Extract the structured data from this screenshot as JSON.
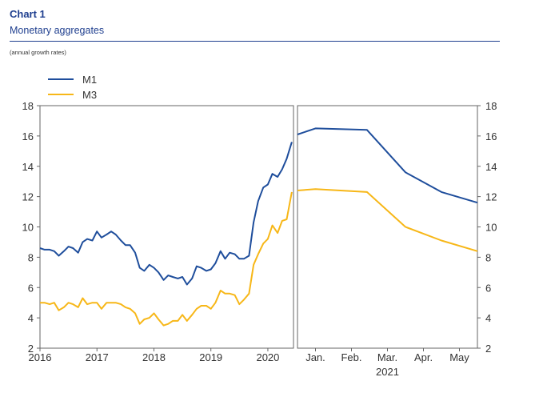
{
  "header": {
    "chart_number": "Chart 1",
    "title": "Monetary aggregates",
    "subtitle": "(annual growth rates)"
  },
  "colors": {
    "m1": "#1f4e9c",
    "m3": "#f7b718",
    "frame": "#666666",
    "text": "#333333"
  },
  "chart_data": [
    {
      "type": "line",
      "title": "",
      "x_labels": [
        "2016",
        "2017",
        "2018",
        "2019",
        "2020"
      ],
      "xlim": [
        2016.0,
        2020.45
      ],
      "ylim": [
        2,
        18
      ],
      "y_ticks": [
        2,
        4,
        6,
        8,
        10,
        12,
        14,
        16,
        18
      ],
      "legend": "top-left",
      "series": [
        {
          "name": "M1",
          "x": [
            2016.0,
            2016.08,
            2016.17,
            2016.25,
            2016.33,
            2016.42,
            2016.5,
            2016.58,
            2016.67,
            2016.75,
            2016.83,
            2016.92,
            2017.0,
            2017.08,
            2017.17,
            2017.25,
            2017.33,
            2017.42,
            2017.5,
            2017.58,
            2017.67,
            2017.75,
            2017.83,
            2017.92,
            2018.0,
            2018.08,
            2018.17,
            2018.25,
            2018.33,
            2018.42,
            2018.5,
            2018.58,
            2018.67,
            2018.75,
            2018.83,
            2018.92,
            2019.0,
            2019.08,
            2019.17,
            2019.25,
            2019.33,
            2019.42,
            2019.5,
            2019.58,
            2019.67,
            2019.75,
            2019.83,
            2019.92,
            2020.0,
            2020.08,
            2020.17,
            2020.25,
            2020.33,
            2020.42
          ],
          "values": [
            8.6,
            8.5,
            8.5,
            8.4,
            8.1,
            8.4,
            8.7,
            8.6,
            8.3,
            9.0,
            9.2,
            9.1,
            9.7,
            9.3,
            9.5,
            9.7,
            9.5,
            9.1,
            8.8,
            8.8,
            8.3,
            7.3,
            7.1,
            7.5,
            7.3,
            7.0,
            6.5,
            6.8,
            6.7,
            6.6,
            6.7,
            6.2,
            6.6,
            7.4,
            7.3,
            7.1,
            7.2,
            7.6,
            8.4,
            7.9,
            8.3,
            8.2,
            7.9,
            7.9,
            8.1,
            10.3,
            11.7,
            12.6,
            12.8,
            13.5,
            13.3,
            13.8,
            14.5,
            15.6
          ]
        },
        {
          "name": "M3",
          "x": [
            2016.0,
            2016.08,
            2016.17,
            2016.25,
            2016.33,
            2016.42,
            2016.5,
            2016.58,
            2016.67,
            2016.75,
            2016.83,
            2016.92,
            2017.0,
            2017.08,
            2017.17,
            2017.25,
            2017.33,
            2017.42,
            2017.5,
            2017.58,
            2017.67,
            2017.75,
            2017.83,
            2017.92,
            2018.0,
            2018.08,
            2018.17,
            2018.25,
            2018.33,
            2018.42,
            2018.5,
            2018.58,
            2018.67,
            2018.75,
            2018.83,
            2018.92,
            2019.0,
            2019.08,
            2019.17,
            2019.25,
            2019.33,
            2019.42,
            2019.5,
            2019.58,
            2019.67,
            2019.75,
            2019.83,
            2019.92,
            2020.0,
            2020.08,
            2020.17,
            2020.25,
            2020.33,
            2020.42
          ],
          "values": [
            5.0,
            5.0,
            4.9,
            5.0,
            4.5,
            4.7,
            5.0,
            4.9,
            4.7,
            5.3,
            4.9,
            5.0,
            5.0,
            4.6,
            5.0,
            5.0,
            5.0,
            4.9,
            4.7,
            4.6,
            4.3,
            3.6,
            3.9,
            4.0,
            4.3,
            3.9,
            3.5,
            3.6,
            3.8,
            3.8,
            4.2,
            3.8,
            4.2,
            4.6,
            4.8,
            4.8,
            4.6,
            5.0,
            5.8,
            5.6,
            5.6,
            5.5,
            4.9,
            5.2,
            5.6,
            7.5,
            8.2,
            8.9,
            9.2,
            10.1,
            9.6,
            10.4,
            10.5,
            12.3
          ]
        }
      ]
    },
    {
      "type": "line",
      "title": "",
      "categories": [
        "Jan.",
        "Feb.",
        "Mar.",
        "Apr.",
        "May"
      ],
      "year_label": "2021",
      "ylim": [
        2,
        18
      ],
      "y_ticks": [
        2,
        4,
        6,
        8,
        10,
        12,
        14,
        16,
        18
      ],
      "series": [
        {
          "name": "M1",
          "x": [
            0.0,
            0.5,
            1.93,
            3.0,
            4.0,
            5.0
          ],
          "values": [
            16.1,
            16.5,
            16.4,
            13.6,
            12.3,
            11.6
          ]
        },
        {
          "name": "M3",
          "x": [
            0.0,
            0.5,
            1.93,
            3.0,
            4.0,
            5.0
          ],
          "values": [
            12.4,
            12.5,
            12.3,
            10.0,
            9.1,
            8.4
          ]
        }
      ]
    }
  ]
}
